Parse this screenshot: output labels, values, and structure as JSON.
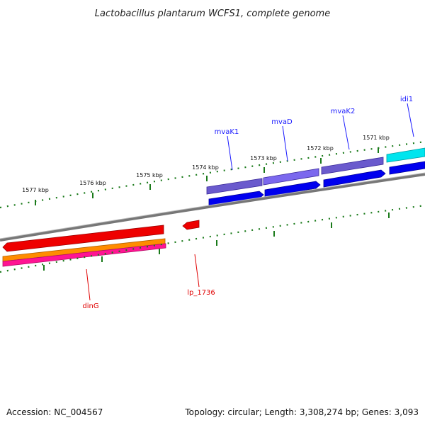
{
  "title": "Lactobacillus plantarum WCFS1, complete genome",
  "ticks": [
    "1577 kbp",
    "1576 kbp",
    "1575 kbp",
    "1574 kbp",
    "1573 kbp",
    "1572 kbp",
    "1571 kbp"
  ],
  "genes": {
    "mvaK1": "mvaK1",
    "mvaD": "mvaD",
    "mvaK2": "mvaK2",
    "idi1": "idi1",
    "dinG": "dinG",
    "lp_1736": "lp_1736"
  },
  "footer": {
    "accession": "Accession: NC_004567",
    "summary": "Topology: circular; Length: 3,308,274 bp; Genes: 3,093"
  },
  "colors": {
    "backbone": "#808080",
    "tick": "#1a7a1a",
    "cds_purple": "#6a5acd",
    "cds_blue": "#0000ee",
    "cds_cyan": "#00e5ee",
    "cds_red": "#ee0000",
    "cds_orange": "#ff8c00",
    "cds_pink": "#ff1493"
  }
}
